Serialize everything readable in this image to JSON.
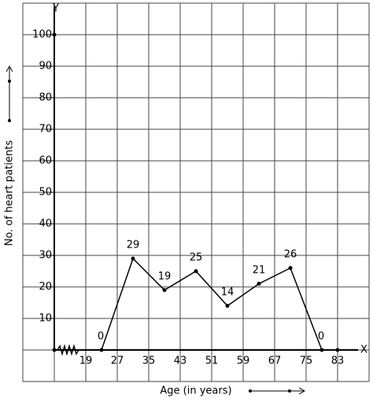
{
  "chart_data": {
    "type": "line",
    "y_axis_name": "Y",
    "x_axis_name": "X",
    "ylabel": "No. of heart patients",
    "xlabel": "Age (in years)",
    "x": [
      23,
      31,
      39,
      47,
      55,
      63,
      71,
      79
    ],
    "values": [
      0,
      29,
      19,
      25,
      14,
      21,
      26,
      0
    ],
    "color": "#000000",
    "xlim": [
      3,
      91
    ],
    "ylim": [
      -10,
      110
    ],
    "xticks": [
      19,
      27,
      35,
      43,
      51,
      59,
      67,
      75,
      83
    ],
    "yticks": [
      10,
      20,
      30,
      40,
      50,
      60,
      70,
      80,
      90,
      100
    ],
    "grid": true
  }
}
